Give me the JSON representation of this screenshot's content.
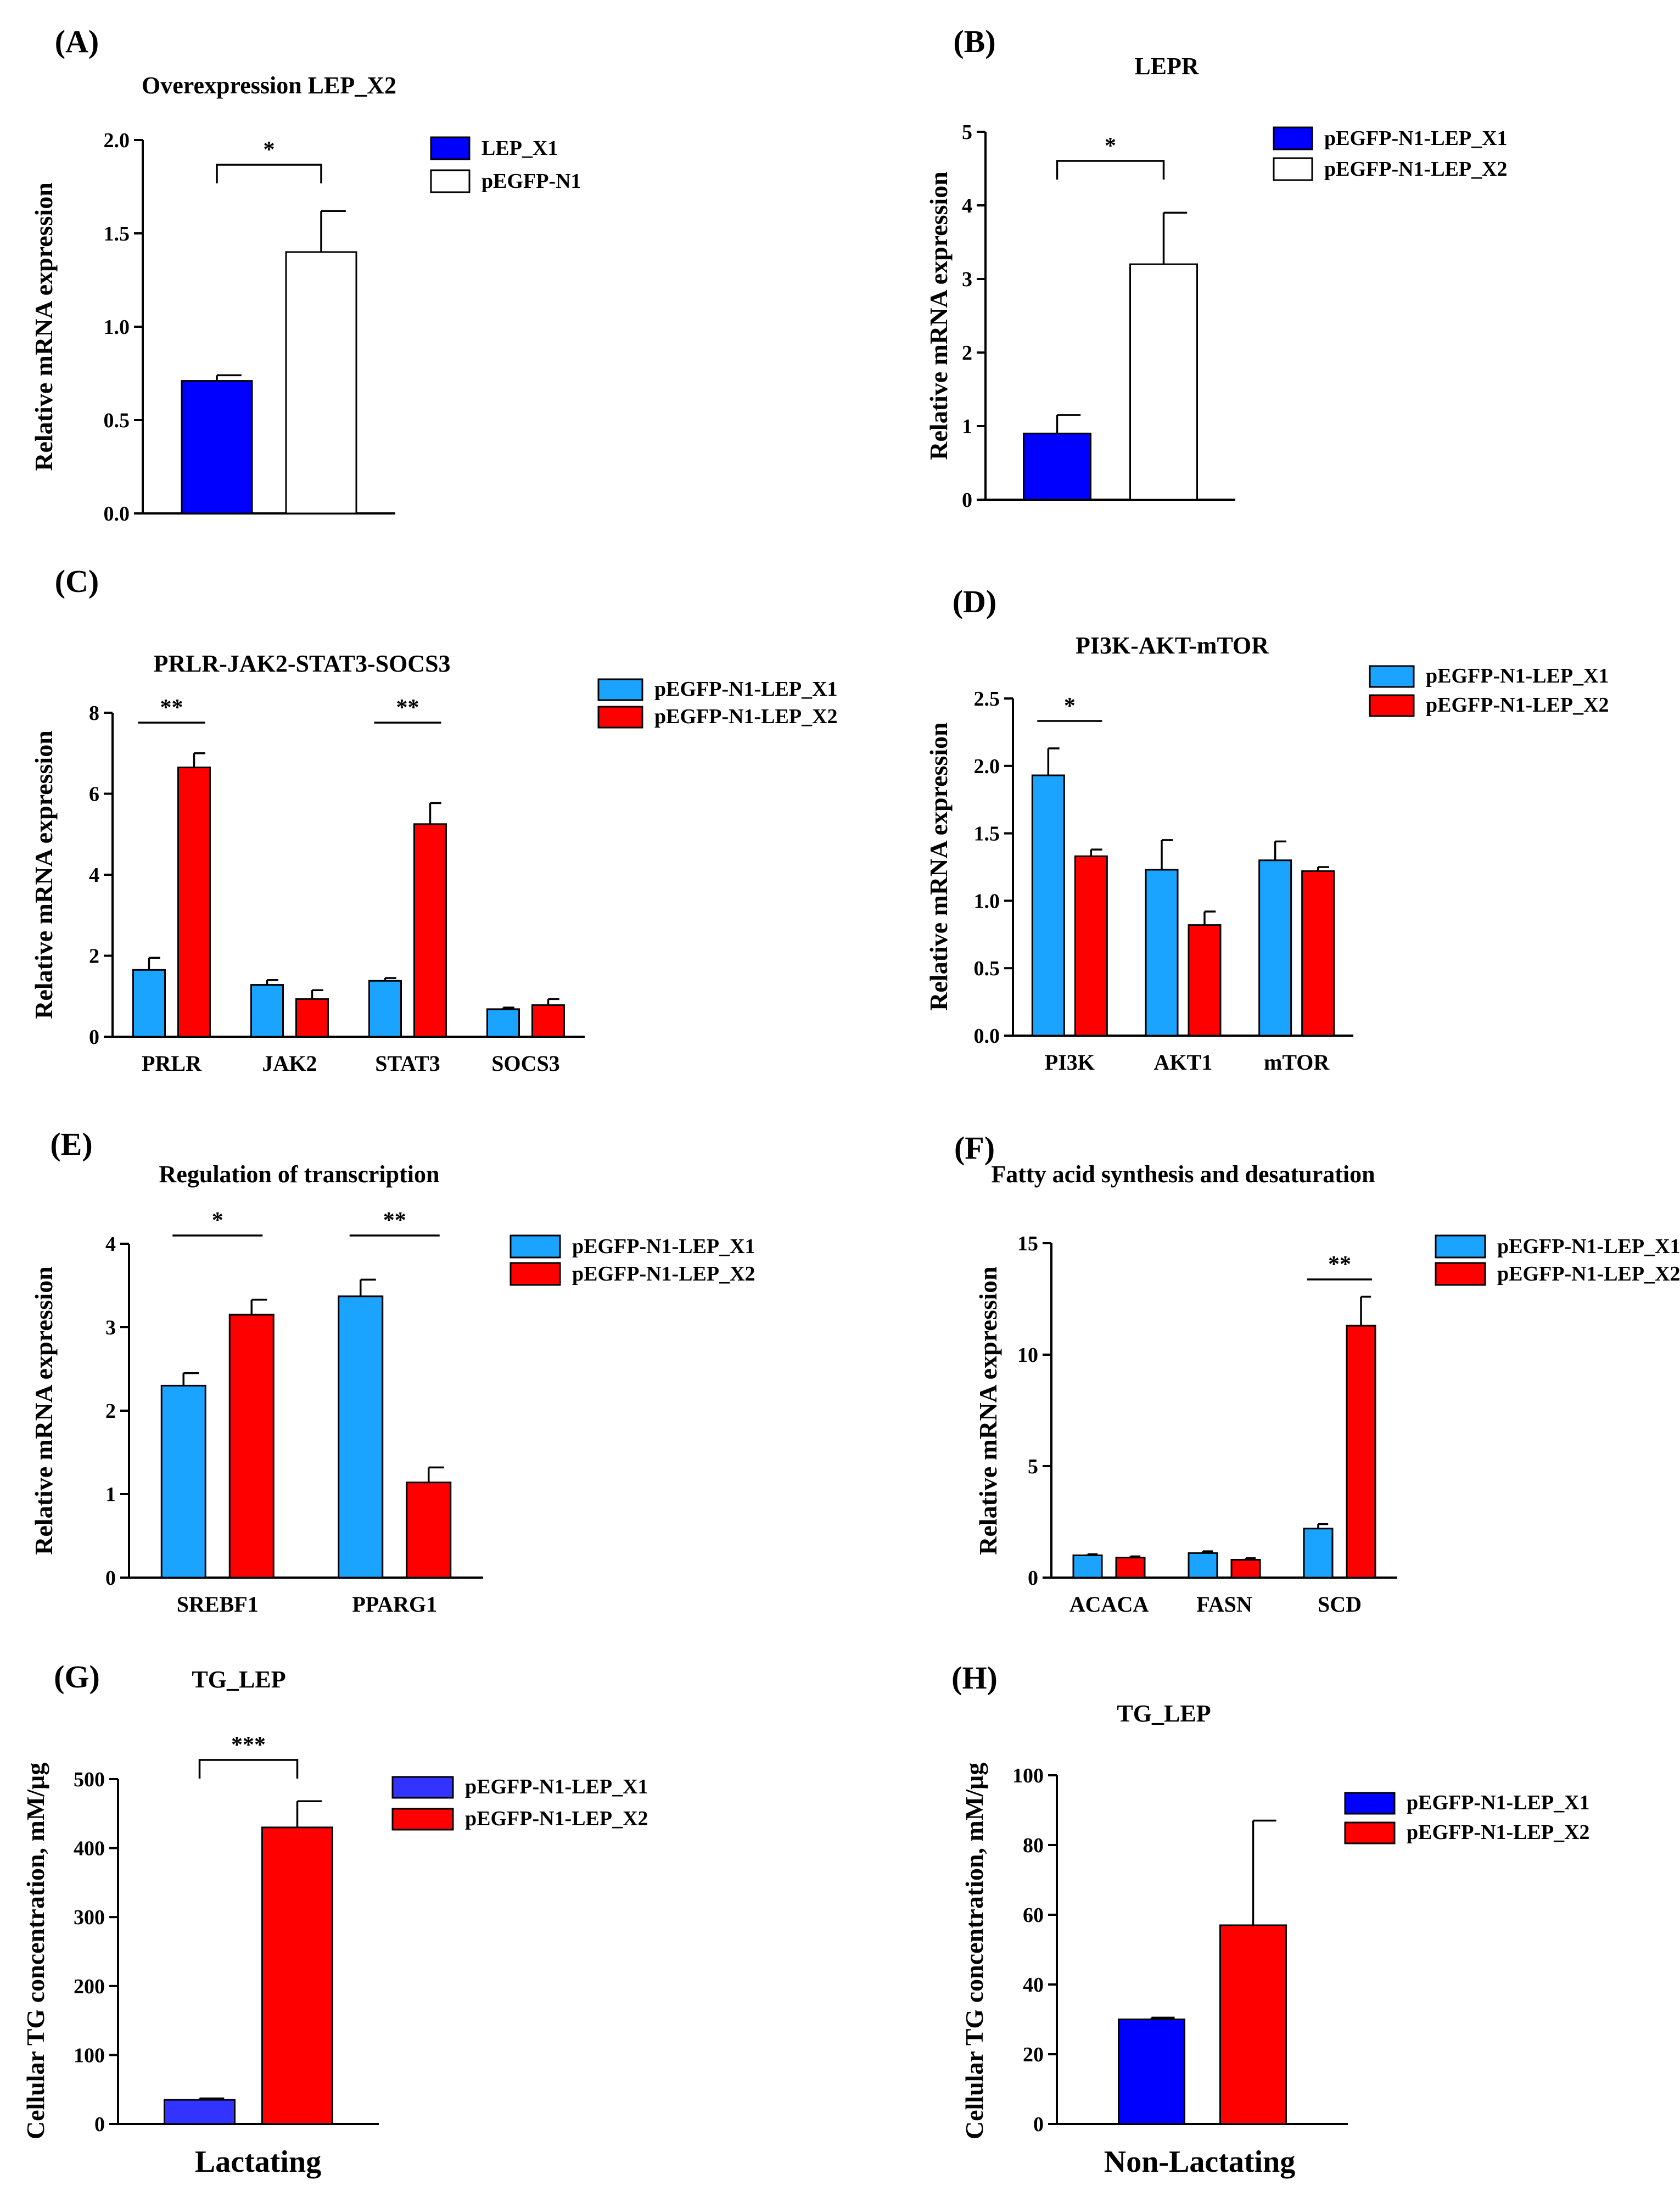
{
  "colors": {
    "dark_blue": "#0000ff",
    "light_blue": "#1aa3ff",
    "red": "#ff0000",
    "white": "#ffffff",
    "purple_blue": "#3333ff"
  },
  "chart_data": [
    {
      "id": "A",
      "label": "(A)",
      "type": "bar",
      "title": "Overexpression LEP_X2",
      "ylabel": "Relative mRNA expression",
      "ylim": [
        0,
        2.0
      ],
      "yticks": [
        "0.0",
        "0.5",
        "1.0",
        "1.5",
        "2.0"
      ],
      "categories": [
        ""
      ],
      "series": [
        {
          "name": "LEP_X1",
          "color": "#0000ff",
          "values": [
            0.71
          ],
          "errors": [
            0.03
          ]
        },
        {
          "name": "pEGFP-N1",
          "color": "#ffffff",
          "values": [
            1.4
          ],
          "errors": [
            0.22
          ]
        }
      ],
      "significance": [
        {
          "text": "*",
          "style": "bracket",
          "group": 0
        }
      ]
    },
    {
      "id": "B",
      "label": "(B)",
      "type": "bar",
      "title": "LEPR",
      "ylabel": "Relative mRNA expression",
      "ylim": [
        0,
        5
      ],
      "yticks": [
        "0",
        "1",
        "2",
        "3",
        "4",
        "5"
      ],
      "categories": [
        ""
      ],
      "series": [
        {
          "name": "pEGFP-N1-LEP_X1",
          "color": "#0000ff",
          "values": [
            0.9
          ],
          "errors": [
            0.25
          ]
        },
        {
          "name": "pEGFP-N1-LEP_X2",
          "color": "#ffffff",
          "values": [
            3.2
          ],
          "errors": [
            0.7
          ]
        }
      ],
      "significance": [
        {
          "text": "*",
          "style": "bracket",
          "group": 0
        }
      ]
    },
    {
      "id": "C",
      "label": "(C)",
      "type": "bar",
      "title": "PRLR-JAK2-STAT3-SOCS3",
      "ylabel": "Relative mRNA expression",
      "ylim": [
        0,
        8
      ],
      "yticks": [
        "0",
        "2",
        "4",
        "6",
        "8"
      ],
      "categories": [
        "PRLR",
        "JAK2",
        "STAT3",
        "SOCS3"
      ],
      "series": [
        {
          "name": "pEGFP-N1-LEP_X1",
          "color": "#1aa3ff",
          "values": [
            1.65,
            1.28,
            1.38,
            0.68
          ],
          "errors": [
            0.3,
            0.12,
            0.07,
            0.04
          ]
        },
        {
          "name": "pEGFP-N1-LEP_X2",
          "color": "#ff0000",
          "values": [
            6.65,
            0.93,
            5.25,
            0.78
          ],
          "errors": [
            0.35,
            0.22,
            0.52,
            0.15
          ]
        }
      ],
      "significance": [
        {
          "text": "**",
          "style": "line",
          "group": 0
        },
        {
          "text": "**",
          "style": "line",
          "group": 2
        }
      ]
    },
    {
      "id": "D",
      "label": "(D)",
      "type": "bar",
      "title": "PI3K-AKT-mTOR",
      "ylabel": "Relative mRNA expression",
      "ylim": [
        0,
        2.5
      ],
      "yticks": [
        "0.0",
        "0.5",
        "1.0",
        "1.5",
        "2.0",
        "2.5"
      ],
      "categories": [
        "PI3K",
        "AKT1",
        "mTOR"
      ],
      "series": [
        {
          "name": "pEGFP-N1-LEP_X1",
          "color": "#1aa3ff",
          "values": [
            1.93,
            1.23,
            1.3
          ],
          "errors": [
            0.2,
            0.22,
            0.14
          ]
        },
        {
          "name": "pEGFP-N1-LEP_X2",
          "color": "#ff0000",
          "values": [
            1.33,
            0.82,
            1.22
          ],
          "errors": [
            0.05,
            0.1,
            0.03
          ]
        }
      ],
      "significance": [
        {
          "text": "*",
          "style": "line",
          "group": 0
        }
      ]
    },
    {
      "id": "E",
      "label": "(E)",
      "type": "bar",
      "title": "Regulation of transcription",
      "ylabel": "Relative mRNA expression",
      "ylim": [
        0,
        4
      ],
      "yticks": [
        "0",
        "1",
        "2",
        "3",
        "4"
      ],
      "categories": [
        "SREBF1",
        "PPARG1"
      ],
      "series": [
        {
          "name": "pEGFP-N1-LEP_X1",
          "color": "#1aa3ff",
          "values": [
            2.3,
            3.37
          ],
          "errors": [
            0.15,
            0.2
          ]
        },
        {
          "name": "pEGFP-N1-LEP_X2",
          "color": "#ff0000",
          "values": [
            3.15,
            1.14
          ],
          "errors": [
            0.18,
            0.18
          ]
        }
      ],
      "significance": [
        {
          "text": "*",
          "style": "line",
          "group": 0
        },
        {
          "text": "**",
          "style": "line",
          "group": 1
        }
      ]
    },
    {
      "id": "F",
      "label": "(F)",
      "type": "bar",
      "title": "Fatty acid synthesis and desaturation",
      "ylabel": "Relative mRNA expression",
      "ylim": [
        0,
        15
      ],
      "yticks": [
        "0",
        "5",
        "10",
        "15"
      ],
      "categories": [
        "ACACA",
        "FASN",
        "SCD"
      ],
      "series": [
        {
          "name": "pEGFP-N1-LEP_X1",
          "color": "#1aa3ff",
          "values": [
            1.0,
            1.1,
            2.2
          ],
          "errors": [
            0.05,
            0.08,
            0.2
          ]
        },
        {
          "name": "pEGFP-N1-LEP_X2",
          "color": "#ff0000",
          "values": [
            0.9,
            0.8,
            11.3
          ],
          "errors": [
            0.05,
            0.07,
            1.3
          ]
        }
      ],
      "significance": [
        {
          "text": "**",
          "style": "line",
          "group": 2
        }
      ]
    },
    {
      "id": "G",
      "label": "(G)",
      "type": "bar",
      "title": "TG_LEP",
      "ylabel": "Cellular TG concentration, mM/μg",
      "ylim": [
        0,
        500
      ],
      "yticks": [
        "0",
        "100",
        "200",
        "300",
        "400",
        "500"
      ],
      "categories": [
        ""
      ],
      "xlabel": "Lactating",
      "series": [
        {
          "name": "pEGFP-N1-LEP_X1",
          "color": "#3333ff",
          "values": [
            35
          ],
          "errors": [
            2
          ]
        },
        {
          "name": "pEGFP-N1-LEP_X2",
          "color": "#ff0000",
          "values": [
            430
          ],
          "errors": [
            38
          ]
        }
      ],
      "significance": [
        {
          "text": "***",
          "style": "bracket",
          "group": 0
        }
      ]
    },
    {
      "id": "H",
      "label": "(H)",
      "type": "bar",
      "title": "TG_LEP",
      "ylabel": "Cellular TG concentration, mM/μg",
      "ylim": [
        0,
        100
      ],
      "yticks": [
        "0",
        "20",
        "40",
        "60",
        "80",
        "100"
      ],
      "categories": [
        ""
      ],
      "xlabel": "Non-Lactating",
      "series": [
        {
          "name": "pEGFP-N1-LEP_X1",
          "color": "#0000ff",
          "values": [
            30
          ],
          "errors": [
            0.5
          ]
        },
        {
          "name": "pEGFP-N1-LEP_X2",
          "color": "#ff0000",
          "values": [
            57
          ],
          "errors": [
            30
          ]
        }
      ],
      "significance": []
    }
  ]
}
